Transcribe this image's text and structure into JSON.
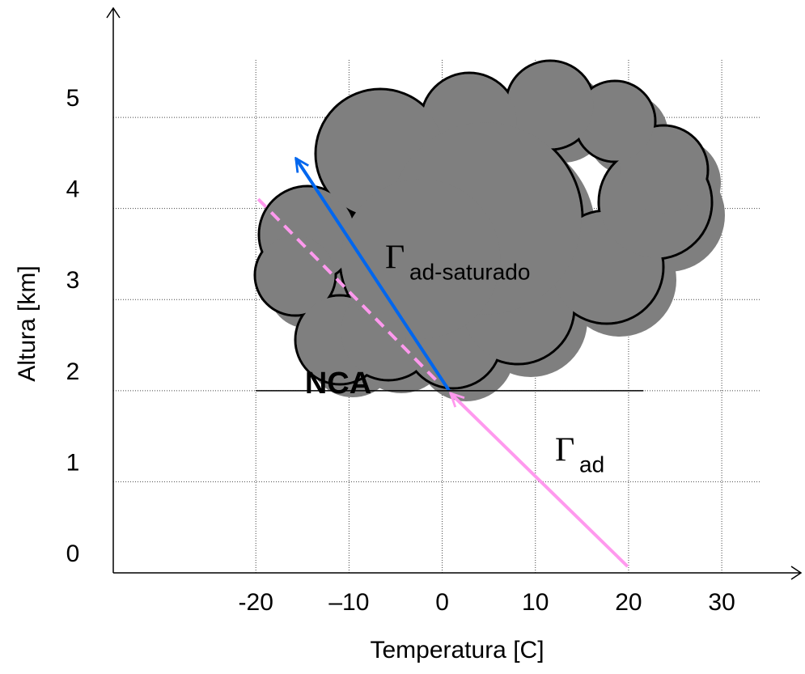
{
  "chart_data": {
    "type": "line",
    "xlabel": "Temperatura [C]",
    "ylabel": "Altura [km]",
    "xlim": [
      -35.3,
      38.5
    ],
    "ylim": [
      0,
      6.2
    ],
    "xticks": [
      -20,
      {
        "value": -10,
        "label": "–10"
      },
      0,
      10,
      20,
      30
    ],
    "yticks": [
      0,
      1,
      2,
      3,
      4,
      5
    ],
    "grid": true,
    "series": [
      {
        "color": "#ff99ee",
        "x": [
          19.9,
          0.9
        ],
        "values": [
          0.07,
          1.97
        ],
        "style": "solid",
        "arrow": true
      },
      {
        "color": "#0066ee",
        "x": [
          0.75,
          -15.7
        ],
        "values": [
          2,
          4.55
        ],
        "style": "solid",
        "arrow": true
      },
      {
        "color": "#ff99ee",
        "x": [
          -0.7,
          -20
        ],
        "values": [
          2.12,
          4.13
        ],
        "style": "dashed",
        "arrow": false
      },
      {
        "color": "#000000",
        "x": [
          -20,
          21.6
        ],
        "values": [
          2,
          2
        ],
        "style": "thin",
        "arrow": false
      }
    ],
    "annotations": {
      "saturated": {
        "symbol": "Γ",
        "subscript": "ad-saturado"
      },
      "dry": {
        "symbol": "Γ",
        "subscript": "ad"
      },
      "level": "NCA"
    }
  }
}
